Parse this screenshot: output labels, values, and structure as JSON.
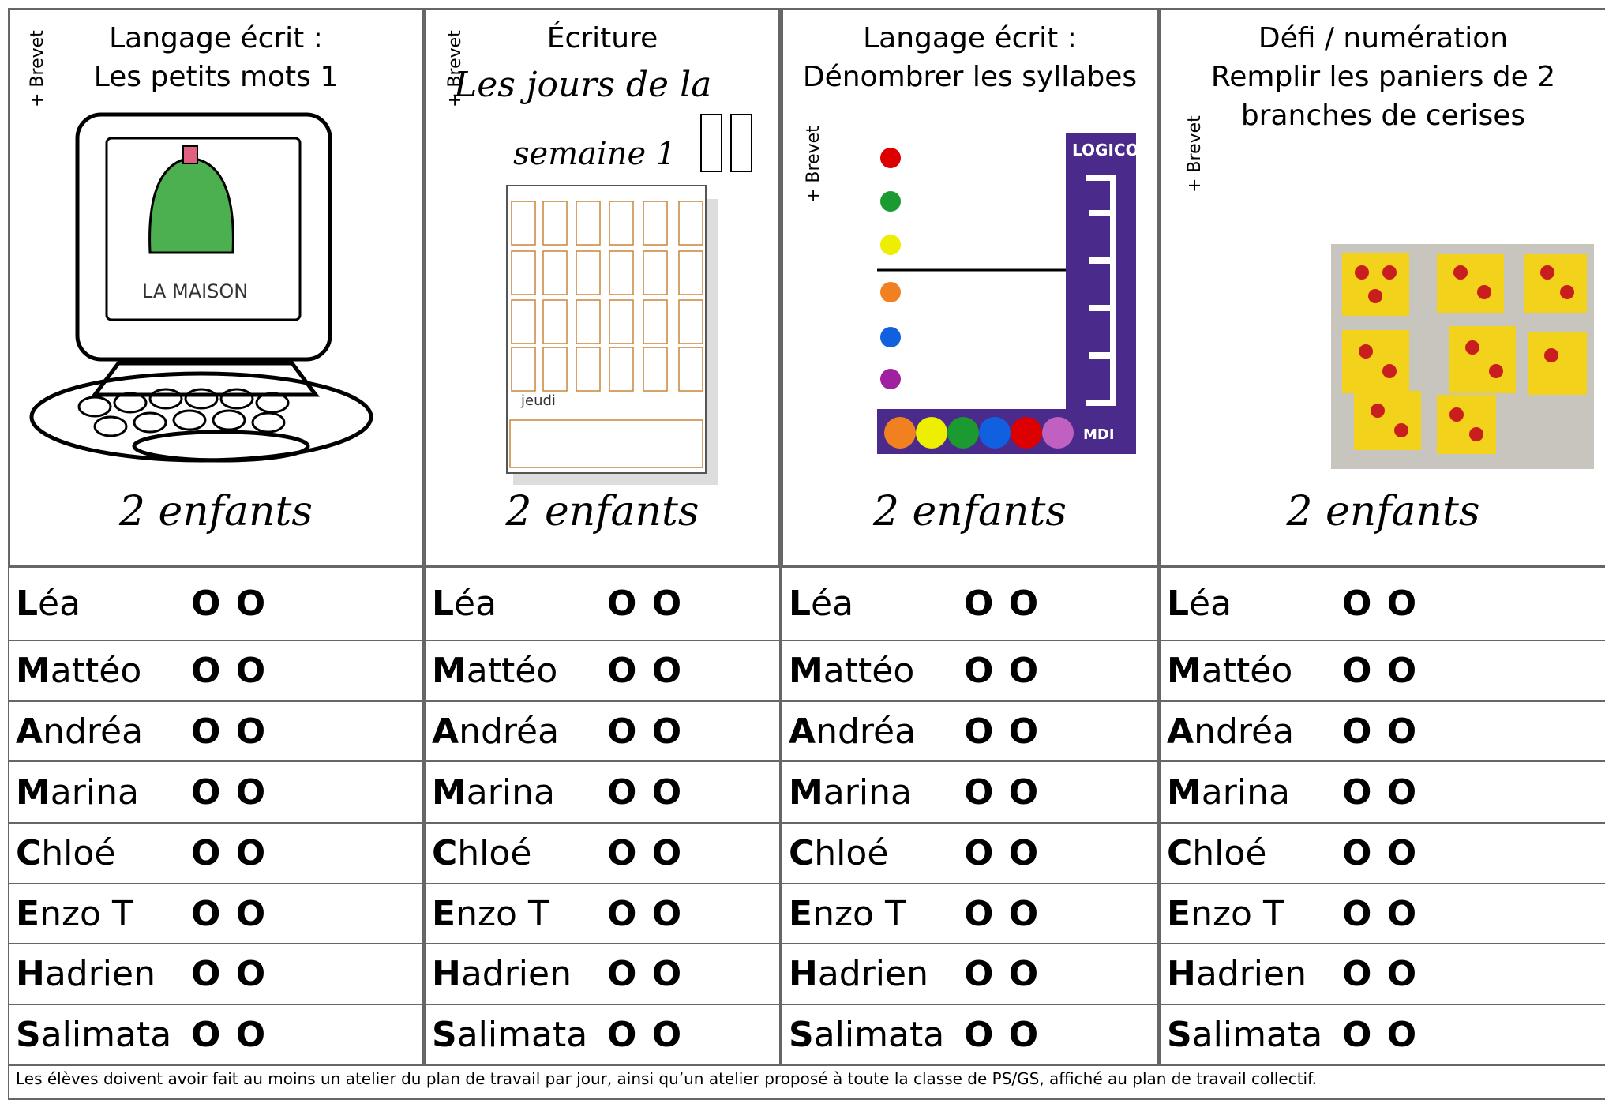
{
  "columns": [
    {
      "brevet": "+ Brevet",
      "title": [
        "Langage écrit :",
        "Les petits mots 1"
      ],
      "image_text": [
        "LA MAISON"
      ],
      "caption": "2 enfants"
    },
    {
      "brevet": "+ Brevet",
      "title": [
        "Écriture"
      ],
      "cursive": [
        "Les jours de la",
        "semaine 1"
      ],
      "image_text": [
        "jeudi"
      ],
      "caption": "2 enfants"
    },
    {
      "brevet": "+ Brevet",
      "title": [
        "Langage écrit :",
        "Dénombrer les syllabes"
      ],
      "image_text": [
        "LOGICO",
        "MDI"
      ],
      "caption": "2 enfants"
    },
    {
      "brevet": "+ Brevet",
      "title": [
        "Défi / numération",
        "Remplir les paniers de 2",
        "branches de cerises"
      ],
      "caption": "2 enfants"
    }
  ],
  "rows": [
    {
      "name": "Léa",
      "marks": "O O"
    },
    {
      "name": "Mattéo",
      "marks": "O O"
    },
    {
      "name": "Andréa",
      "marks": "O O"
    },
    {
      "name": "Marina",
      "marks": "O O"
    },
    {
      "name": "Chloé",
      "marks": "O O"
    },
    {
      "name": "Enzo T",
      "marks": "O O"
    },
    {
      "name": "Hadrien",
      "marks": "O O"
    },
    {
      "name": "Salimata",
      "marks": "O O"
    }
  ],
  "footer": "Les élèves doivent avoir fait au moins un atelier du plan de travail par jour, ainsi qu’un atelier proposé à toute la classe de PS/GS, affiché au plan de travail collectif."
}
